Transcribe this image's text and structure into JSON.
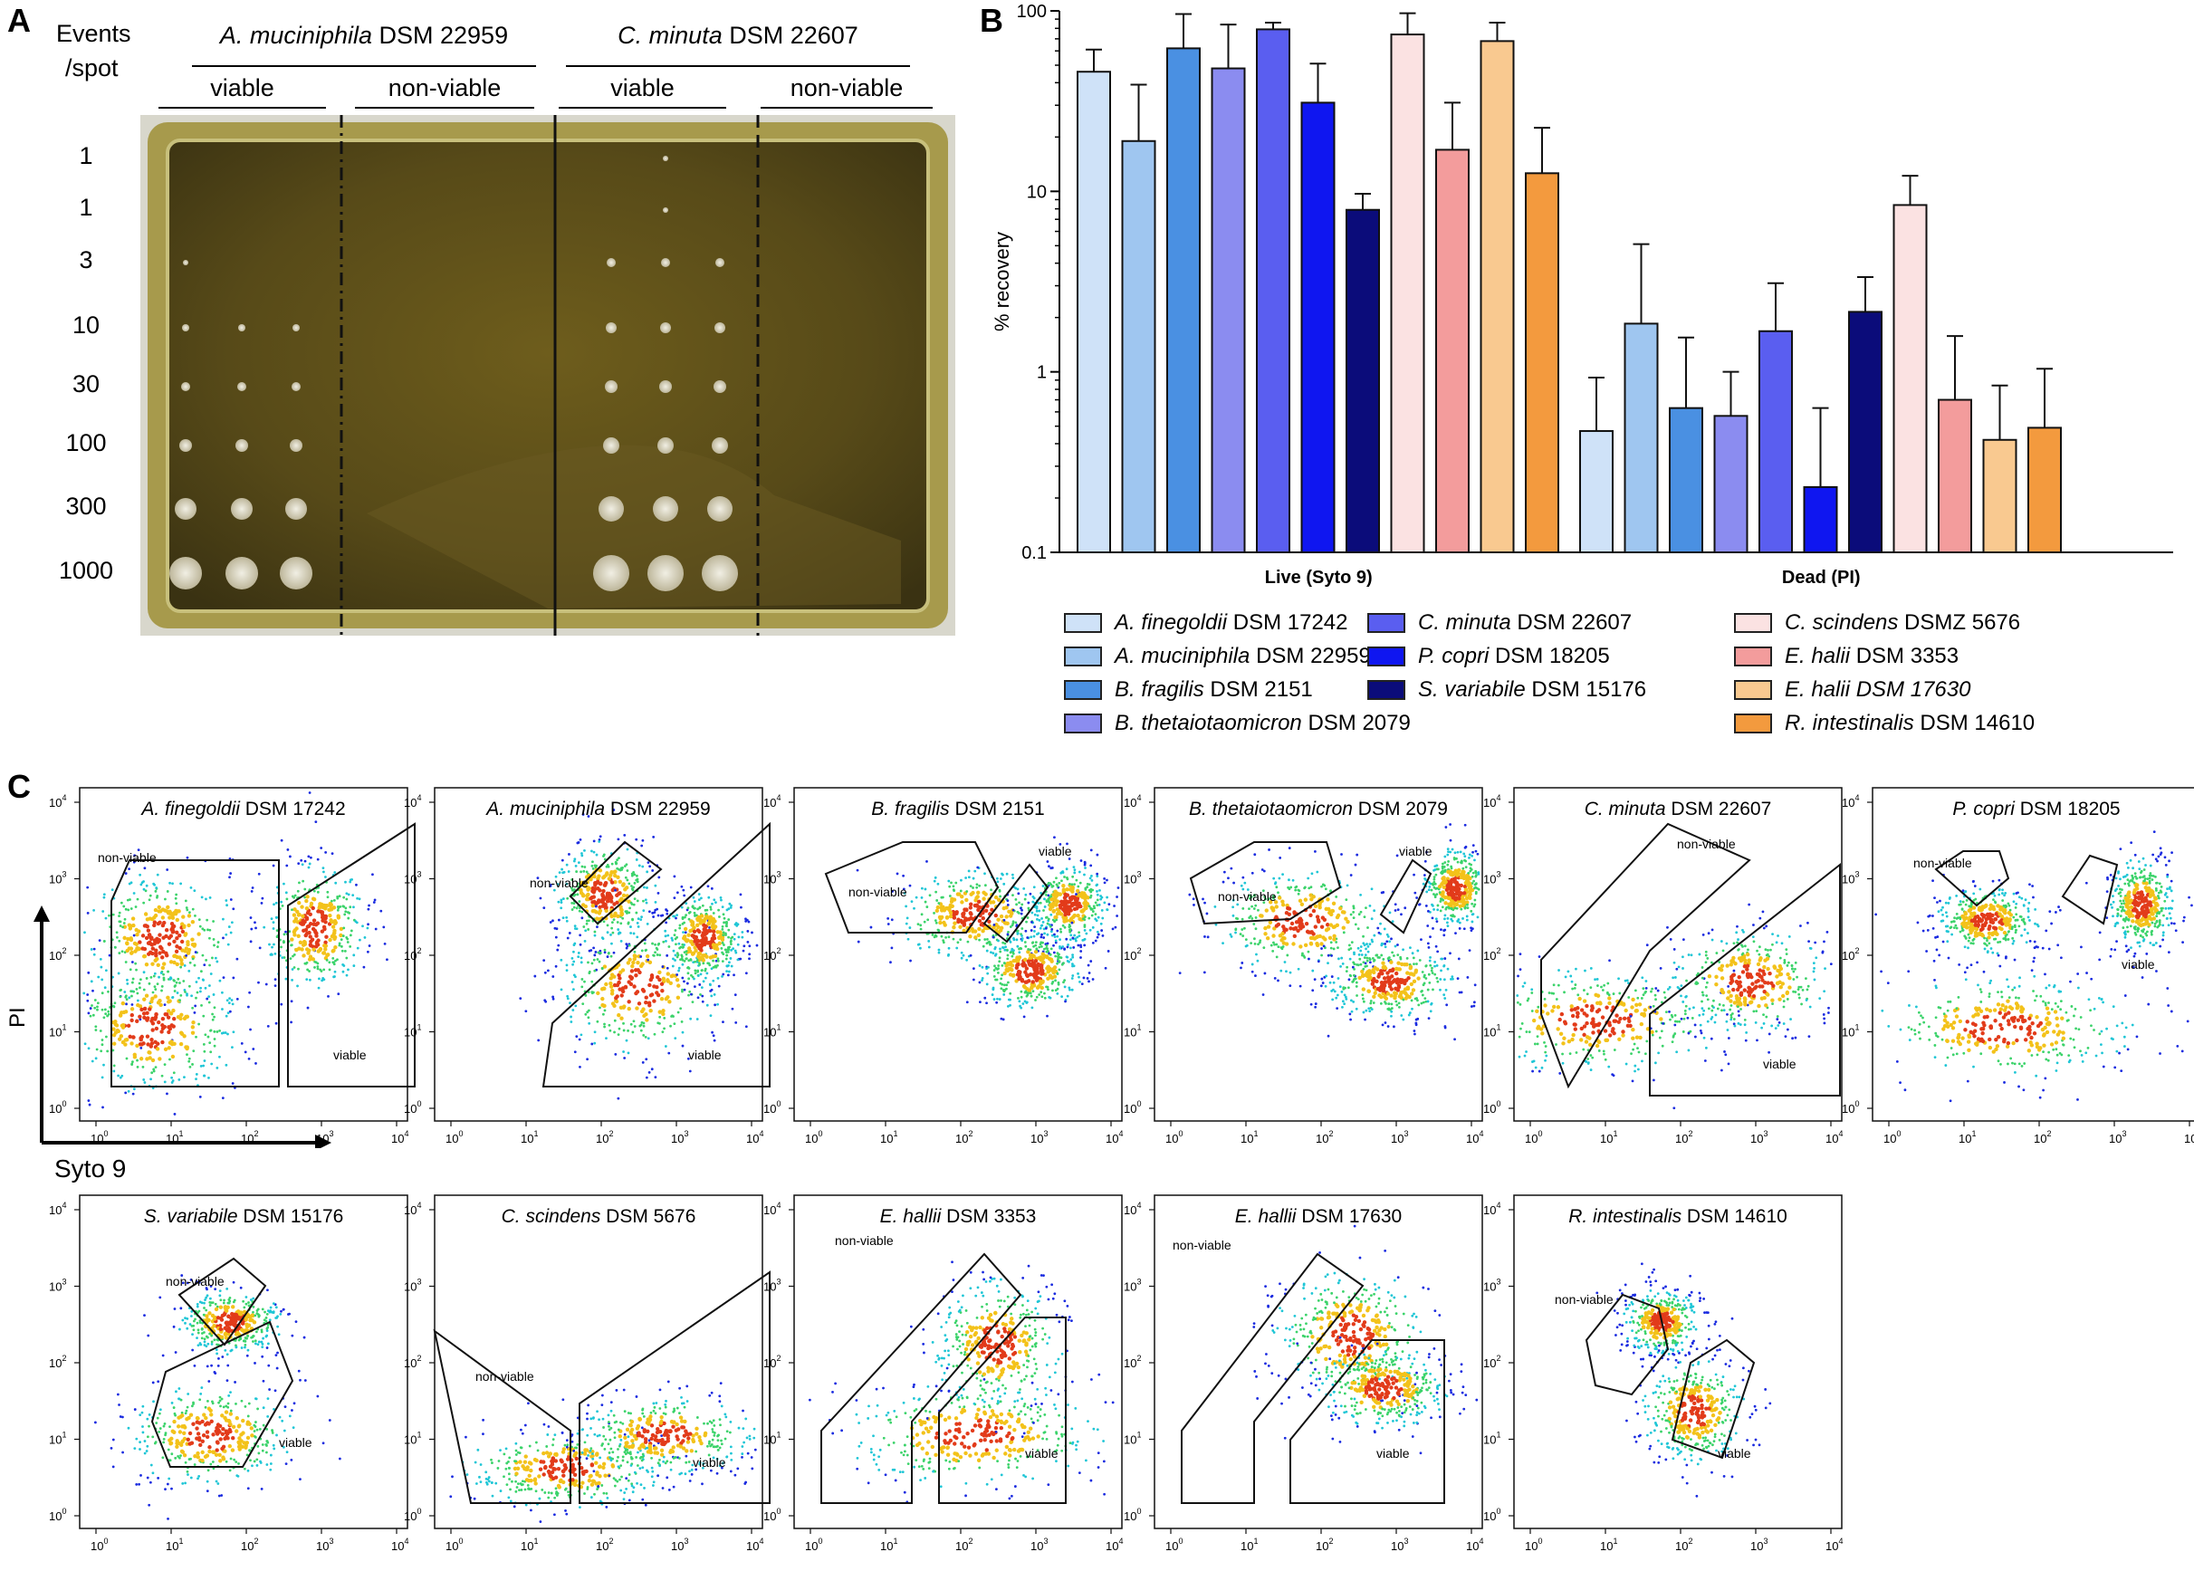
{
  "panelA": {
    "label": "A",
    "events_label_1": "Events",
    "events_label_2": "/spot",
    "species1": {
      "italic": "A. muciniphila",
      "strain": "DSM 22959"
    },
    "species2": {
      "italic": "C. minuta",
      "strain": "DSM 22607"
    },
    "viable": "viable",
    "nonviable": "non-viable",
    "rows": [
      "1",
      "1",
      "3",
      "10",
      "30",
      "100",
      "300",
      "1000"
    ]
  },
  "panelB": {
    "label": "B",
    "legend": [
      {
        "italic": "A. finegoldii",
        "rest": " DSM 17242",
        "color": "#cfe2f8"
      },
      {
        "italic": "A. muciniphila",
        "rest": " DSM 22959",
        "color": "#9fc6f0"
      },
      {
        "italic": "B. fragilis",
        "rest": " DSM 2151",
        "color": "#4a90e2"
      },
      {
        "italic": "B. thetaiotaomicron",
        "rest": " DSM 2079",
        "color": "#8b8cf0"
      },
      {
        "italic": "C. minuta",
        "rest": " DSM 22607",
        "color": "#5a5ef0"
      },
      {
        "italic": "P. copri",
        "rest": " DSM 18205",
        "color": "#0f16f0"
      },
      {
        "italic": "S. variabile",
        "rest": " DSM 15176",
        "color": "#0b0c7a"
      },
      {
        "italic": "C. scindens",
        "rest": " DSMZ 5676",
        "color": "#fbe2e2"
      },
      {
        "italic": "E. halii",
        "rest": " DSM 3353",
        "color": "#f39c9c"
      },
      {
        "italic": "E. halii DSM 17630",
        "rest": "",
        "color": "#f9c990"
      },
      {
        "italic": "R. intestinalis",
        "rest": " DSM 14610",
        "color": "#f39a3e"
      }
    ]
  },
  "chart_data": {
    "type": "bar",
    "ylabel": "% recovery",
    "yscale": "log",
    "ylim": [
      0.1,
      100
    ],
    "yticks": [
      "0.1",
      "1",
      "10",
      "100"
    ],
    "categories": [
      "Live (Syto 9)",
      "Dead (PI)"
    ],
    "series": [
      {
        "name": "A. finegoldii DSM 17242",
        "values": [
          46,
          0.47
        ],
        "errors": [
          61,
          0.93
        ]
      },
      {
        "name": "A. muciniphila DSM 22959",
        "values": [
          19,
          1.85
        ],
        "errors": [
          39,
          5.1
        ]
      },
      {
        "name": "B. fragilis DSM 2151",
        "values": [
          62,
          0.63
        ],
        "errors": [
          96,
          1.55
        ]
      },
      {
        "name": "B. thetaiotaomicron DSM 2079",
        "values": [
          48,
          0.57
        ],
        "errors": [
          84,
          1.0
        ]
      },
      {
        "name": "C. minuta DSM 22607",
        "values": [
          79,
          1.68
        ],
        "errors": [
          86,
          3.1
        ]
      },
      {
        "name": "P. copri DSM 18205",
        "values": [
          31,
          0.23
        ],
        "errors": [
          51,
          0.63
        ]
      },
      {
        "name": "S. variabile DSM 15176",
        "values": [
          7.9,
          2.15
        ],
        "errors": [
          9.7,
          3.35
        ]
      },
      {
        "name": "C. scindens DSMZ 5676",
        "values": [
          74,
          8.4
        ],
        "errors": [
          97,
          12.2
        ]
      },
      {
        "name": "E. halii DSM 3353",
        "values": [
          17,
          0.7
        ],
        "errors": [
          31,
          1.58
        ]
      },
      {
        "name": "E. halii DSM 17630",
        "values": [
          68,
          0.42
        ],
        "errors": [
          86,
          0.84
        ]
      },
      {
        "name": "R. intestinalis DSM 14610",
        "values": [
          12.6,
          0.49
        ],
        "errors": [
          22.5,
          1.04
        ]
      }
    ]
  },
  "panelC": {
    "label": "C",
    "y_axis_label": "PI",
    "x_axis_label": "Syto 9",
    "plots": [
      {
        "italic": "A. finegoldii",
        "rest": " DSM 17242",
        "nonviable": "non-viable",
        "viable": "viable"
      },
      {
        "italic": "A. muciniphila",
        "rest": " DSM 22959",
        "nonviable": "non-viable",
        "viable": "viable"
      },
      {
        "italic": "B. fragilis",
        "rest": " DSM 2151",
        "nonviable": "non-viable",
        "viable": "viable"
      },
      {
        "italic": "B. thetaiotaomicron",
        "rest": " DSM 2079",
        "nonviable": "non-viable",
        "viable": "viable"
      },
      {
        "italic": "C. minuta",
        "rest": " DSM 22607",
        "nonviable": "non-viable",
        "viable": "viable"
      },
      {
        "italic": "P. copri",
        "rest": " DSM 18205",
        "nonviable": "non-viable",
        "viable": "viable"
      },
      {
        "italic": "S. variabile",
        "rest": " DSM 15176",
        "nonviable": "non-viable",
        "viable": "viable"
      },
      {
        "italic": "C. scindens",
        "rest": " DSM 5676",
        "nonviable": "non-viable",
        "viable": "viable"
      },
      {
        "italic": "E. hallii",
        "rest": " DSM 3353",
        "nonviable": "non-viable",
        "viable": "viable"
      },
      {
        "italic": "E. hallii",
        "rest": " DSM 17630",
        "nonviable": "non-viable",
        "viable": "viable"
      },
      {
        "italic": "R. intestinalis",
        "rest": " DSM 14610",
        "nonviable": "non-viable",
        "viable": "viable"
      }
    ]
  }
}
